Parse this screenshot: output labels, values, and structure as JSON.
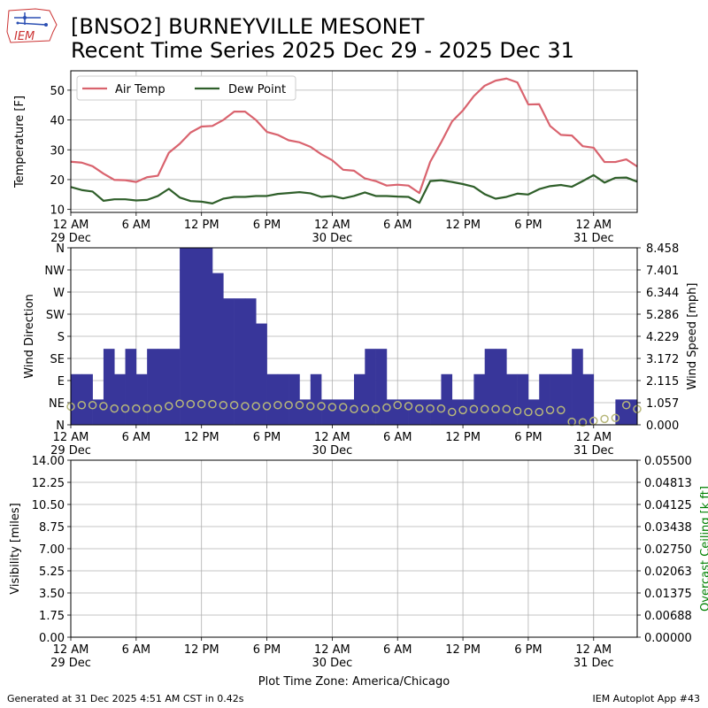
{
  "header": {
    "title_line1": "[BNSO2] BURNEYVILLE MESONET",
    "title_line2": "Recent Time Series 2025 Dec 29 - 2025 Dec 31",
    "logo_text": "IEM"
  },
  "footer": {
    "generated": "Generated at 31 Dec 2025 4:51 AM CST in 0.42s",
    "app": "IEM Autoplot App #43",
    "timezone_label": "Plot Time Zone: America/Chicago"
  },
  "colors": {
    "air_temp": "#d9636e",
    "dew_point": "#2f5f2a",
    "wind_bar": "#38369a",
    "wind_dir_marker": "#b7b77a",
    "ceiling_label": "#008000",
    "grid": "#b0b0b0"
  },
  "chart_data": [
    {
      "type": "line",
      "ylabel": "Temperature [F]",
      "ylim": [
        9,
        56.5
      ],
      "yticks": [
        10,
        20,
        30,
        40,
        50
      ],
      "xlim": [
        0,
        52
      ],
      "xticks": [
        {
          "x": 0,
          "label": "12 AM",
          "date": "29 Dec"
        },
        {
          "x": 6,
          "label": "6 AM"
        },
        {
          "x": 12,
          "label": "12 PM"
        },
        {
          "x": 18,
          "label": "6 PM"
        },
        {
          "x": 24,
          "label": "12 AM",
          "date": "30 Dec"
        },
        {
          "x": 30,
          "label": "6 AM"
        },
        {
          "x": 36,
          "label": "12 PM"
        },
        {
          "x": 42,
          "label": "6 PM"
        },
        {
          "x": 48,
          "label": "12 AM",
          "date": "31 Dec"
        }
      ],
      "grid": true,
      "legend": "top-left",
      "series": [
        {
          "name": "Air Temp",
          "x": [
            0,
            1,
            2,
            3,
            4,
            5,
            6,
            7,
            8,
            9,
            10,
            11,
            12,
            13,
            14,
            15,
            16,
            17,
            18,
            19,
            20,
            21,
            22,
            23,
            24,
            25,
            26,
            27,
            28,
            29,
            30,
            31,
            32,
            33,
            34,
            35,
            36,
            37,
            38,
            39,
            40,
            41,
            42,
            43,
            44,
            45,
            46,
            47,
            48,
            49,
            50,
            51,
            52
          ],
          "values": [
            26,
            25.7,
            24.5,
            22,
            19.9,
            19.8,
            19.2,
            20.8,
            21.3,
            29,
            32,
            35.8,
            37.8,
            38,
            40,
            42.8,
            42.8,
            40,
            36,
            35,
            33.2,
            32.5,
            31,
            28.5,
            26.5,
            23.3,
            23,
            20.4,
            19.5,
            18,
            18.3,
            18,
            15.5,
            26,
            32.5,
            39.5,
            43.2,
            48,
            51.5,
            53.2,
            53.9,
            52.6,
            45.2,
            45.3,
            38,
            35,
            34.8,
            31.2,
            30.7,
            25.9,
            25.9,
            26.8,
            24.4
          ]
        },
        {
          "name": "Dew Point",
          "x": [
            0,
            1,
            2,
            3,
            4,
            5,
            6,
            7,
            8,
            9,
            10,
            11,
            12,
            13,
            14,
            15,
            16,
            17,
            18,
            19,
            20,
            21,
            22,
            23,
            24,
            25,
            26,
            27,
            28,
            29,
            30,
            31,
            32,
            33,
            34,
            35,
            36,
            37,
            38,
            39,
            40,
            41,
            42,
            43,
            44,
            45,
            46,
            47,
            48,
            49,
            50,
            51,
            52
          ],
          "values": [
            17.5,
            16.5,
            16,
            12.9,
            13.4,
            13.4,
            13,
            13.2,
            14.5,
            16.9,
            14,
            12.8,
            12.6,
            12,
            13.6,
            14.2,
            14.2,
            14.5,
            14.5,
            15.2,
            15.5,
            15.8,
            15.4,
            14.2,
            14.5,
            13.7,
            14.5,
            15.7,
            14.5,
            14.5,
            14.3,
            14.2,
            12.2,
            19.5,
            19.8,
            19.2,
            18.5,
            17.6,
            15.1,
            13.6,
            14.2,
            15.3,
            15,
            16.8,
            17.8,
            18.2,
            17.6,
            19.5,
            21.5,
            19,
            20.6,
            20.7,
            19.3
          ]
        }
      ]
    },
    {
      "type": "bar",
      "ylabel": "Wind Direction",
      "ylabel_right": "Wind Speed [mph]",
      "yticks_dir": [
        "N",
        "NE",
        "E",
        "SE",
        "S",
        "SW",
        "W",
        "NW",
        "N"
      ],
      "yticks_right": [
        "0.000",
        "1.057",
        "2.115",
        "3.172",
        "4.229",
        "5.286",
        "6.344",
        "7.401",
        "8.458"
      ],
      "ylim": [
        0,
        8.458
      ],
      "xlim": [
        0,
        52
      ],
      "grid": true,
      "bar_width": 1,
      "bars_x": [
        0.5,
        1.5,
        2.5,
        3.5,
        4.5,
        5.5,
        6.5,
        7.5,
        8.5,
        9.5,
        10.5,
        11.5,
        12.5,
        13.5,
        14.5,
        15.5,
        16.5,
        17.5,
        18.5,
        19.5,
        20.5,
        21.5,
        22.5,
        23.5,
        24.5,
        25.5,
        26.5,
        27.5,
        28.5,
        29.5,
        30.5,
        31.5,
        32.5,
        33.5,
        34.5,
        35.5,
        36.5,
        37.5,
        38.5,
        39.5,
        40.5,
        41.5,
        42.5,
        43.5,
        44.5,
        45.5,
        46.5,
        47.5,
        48.5,
        49.5,
        50.5,
        51.5
      ],
      "wind_speed_mph": [
        2.42,
        2.42,
        1.21,
        3.63,
        2.42,
        3.63,
        2.42,
        3.63,
        3.63,
        3.63,
        8.46,
        8.46,
        8.46,
        7.25,
        6.04,
        6.04,
        6.04,
        4.84,
        2.42,
        2.42,
        2.42,
        1.21,
        2.42,
        1.21,
        1.21,
        1.21,
        2.42,
        3.63,
        3.63,
        1.21,
        1.21,
        1.21,
        1.21,
        1.21,
        2.42,
        1.21,
        1.21,
        2.42,
        3.63,
        3.63,
        2.42,
        2.42,
        1.21,
        2.42,
        2.42,
        2.42,
        3.63,
        2.42,
        0,
        0,
        1.21,
        1.21
      ],
      "marker_x": [
        0,
        1,
        2,
        3,
        4,
        5,
        6,
        7,
        8,
        9,
        10,
        11,
        12,
        13,
        14,
        15,
        16,
        17,
        18,
        19,
        20,
        21,
        22,
        23,
        24,
        25,
        26,
        27,
        28,
        29,
        30,
        31,
        32,
        33,
        34,
        35,
        36,
        37,
        38,
        39,
        40,
        41,
        42,
        43,
        44,
        45,
        46,
        47,
        48,
        49,
        50,
        51,
        52
      ],
      "wind_dir_deg": [
        37,
        40,
        40,
        38,
        33,
        33,
        33,
        33,
        33,
        38,
        43,
        42,
        42,
        42,
        40,
        40,
        38,
        38,
        38,
        40,
        40,
        40,
        38,
        38,
        36,
        36,
        32,
        33,
        32,
        35,
        40,
        38,
        33,
        33,
        33,
        26,
        30,
        32,
        32,
        32,
        32,
        28,
        26,
        26,
        30,
        30,
        6,
        5,
        8,
        12,
        14,
        40,
        32
      ]
    },
    {
      "type": "line",
      "ylabel": "Visibility [miles]",
      "ylabel_right": "Overcast Ceiling [k ft]",
      "ylim": [
        0,
        14
      ],
      "yticks": [
        "0.00",
        "1.75",
        "3.50",
        "5.25",
        "7.00",
        "8.75",
        "10.50",
        "12.25",
        "14.00"
      ],
      "ylim_right": [
        0,
        0.055
      ],
      "yticks_right": [
        "0.00000",
        "0.00688",
        "0.01375",
        "0.02063",
        "0.02750",
        "0.03438",
        "0.04125",
        "0.04813",
        "0.05500"
      ],
      "xlim": [
        0,
        52
      ],
      "grid": true,
      "series": []
    }
  ]
}
